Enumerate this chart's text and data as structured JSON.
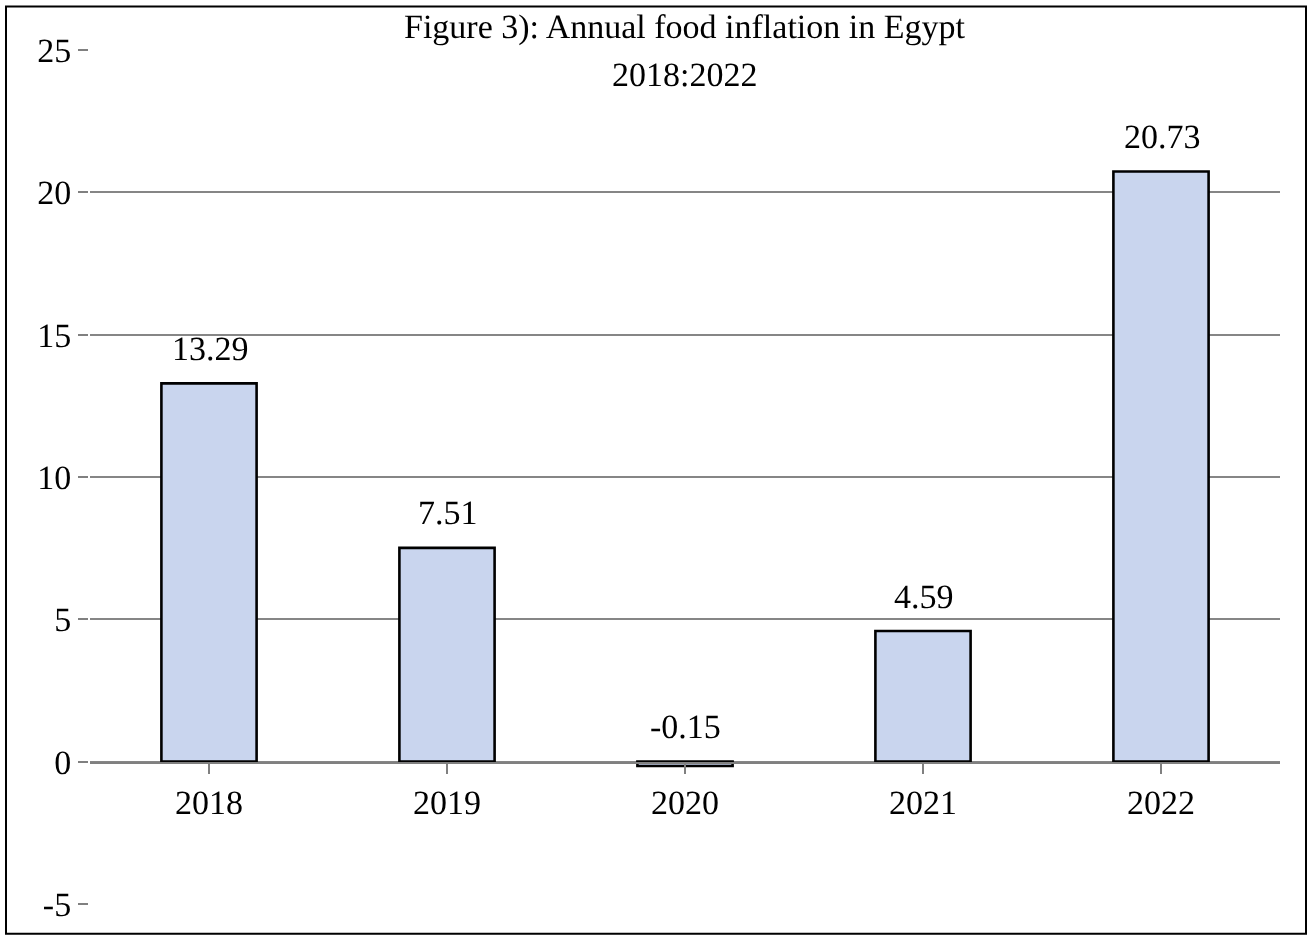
{
  "chart_data": {
    "type": "bar",
    "title": "Figure 3): Annual food inflation in Egypt",
    "subtitle": "2018:2022",
    "categories": [
      "2018",
      "2019",
      "2020",
      "2021",
      "2022"
    ],
    "values": [
      13.29,
      7.51,
      -0.15,
      4.59,
      20.73
    ],
    "color": "#c9d5ee",
    "ylim": [
      -5,
      25
    ],
    "yticks": [
      -5,
      0,
      5,
      10,
      15,
      20,
      25
    ],
    "grid": "y",
    "data_labels": true,
    "legend": false
  }
}
